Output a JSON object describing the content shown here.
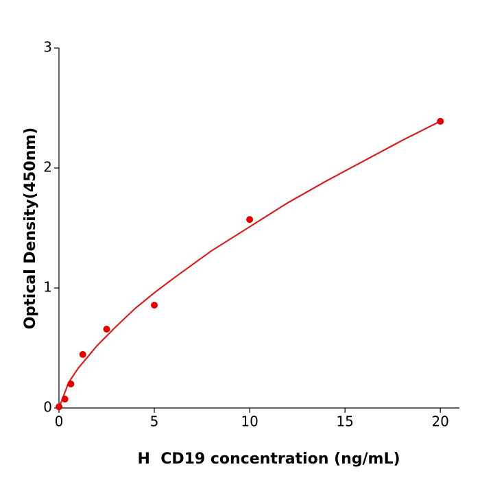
{
  "chart_data": {
    "type": "scatter",
    "x_label": "H  CD19 concentration (ng/mL)",
    "y_label": "Optical Density(450nm)",
    "xlim": [
      0,
      21
    ],
    "xticks": [
      0,
      5,
      10,
      15,
      20
    ],
    "ylim": [
      0,
      3
    ],
    "yticks": [
      0,
      1,
      2,
      3
    ],
    "grid": false,
    "series": [
      {
        "kind": "points",
        "color": "#e00000",
        "x": [
          0,
          0.3125,
          0.625,
          1.25,
          2.5,
          5,
          10,
          20
        ],
        "values": [
          0.01,
          0.074,
          0.2,
          0.446,
          0.657,
          0.857,
          1.571,
          2.389
        ]
      },
      {
        "kind": "line",
        "color": "#d42020",
        "x": [
          0,
          0.5,
          1,
          2,
          3,
          4,
          5,
          6,
          8,
          10,
          12,
          14,
          16,
          18,
          20
        ],
        "values": [
          0,
          0.21,
          0.33,
          0.52,
          0.68,
          0.83,
          0.96,
          1.08,
          1.31,
          1.51,
          1.71,
          1.89,
          2.06,
          2.23,
          2.39
        ]
      }
    ]
  }
}
